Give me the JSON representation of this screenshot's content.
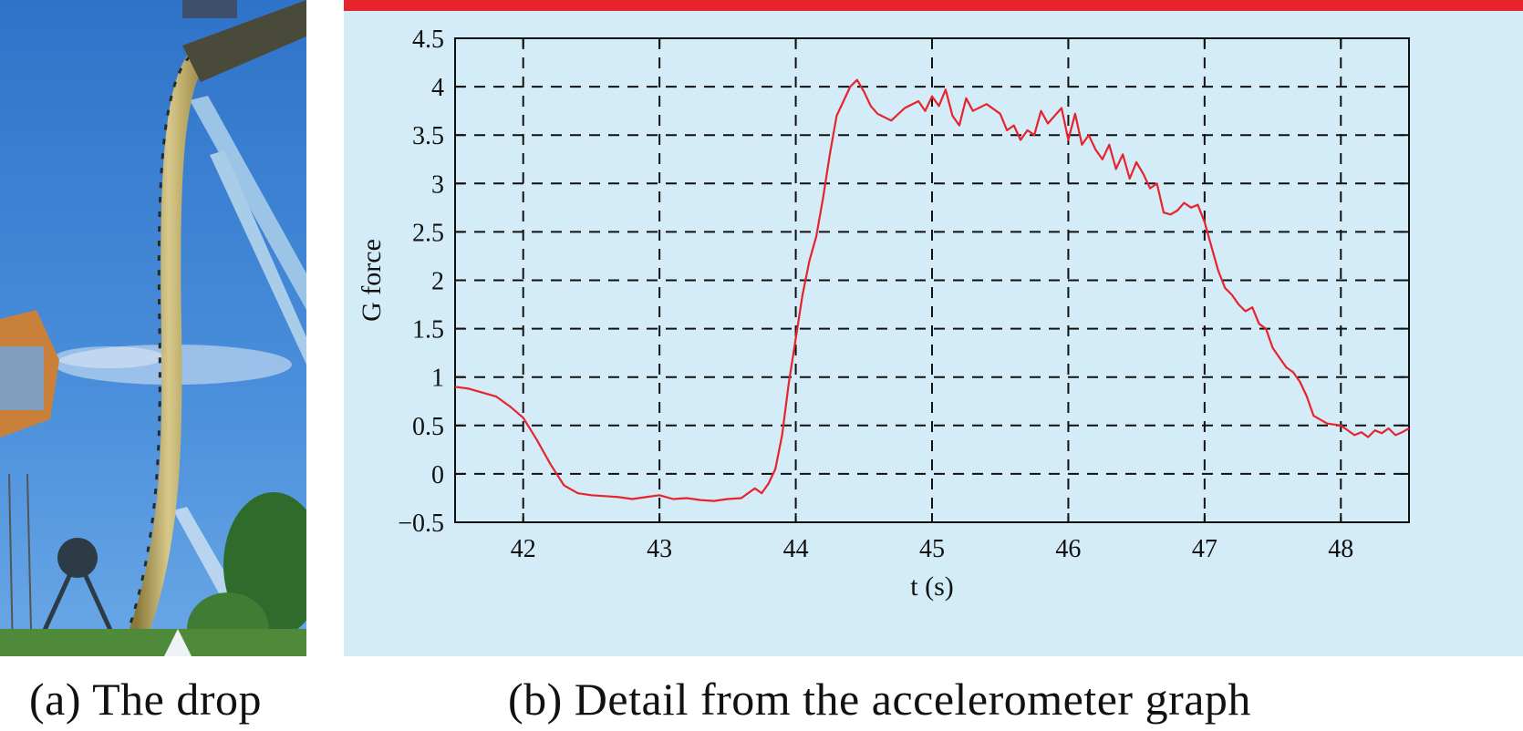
{
  "captions": {
    "a": "(a) The drop",
    "b": "(b) Detail from the accelerometer graph"
  },
  "colors": {
    "chart_background": "#d3ecf8",
    "top_bar": "#e8232c",
    "series_line": "#e8232c",
    "grid": "#111111",
    "sky": "#3b7fd0"
  },
  "chart_data": {
    "type": "line",
    "xlabel": "t (s)",
    "ylabel": "G force",
    "xlim": [
      41.5,
      48.5
    ],
    "ylim": [
      -0.5,
      4.5
    ],
    "xticks": [
      42,
      43,
      44,
      45,
      46,
      47,
      48
    ],
    "xtick_labels": [
      "42",
      "43",
      "44",
      "45",
      "46",
      "47",
      "48"
    ],
    "yticks": [
      -0.5,
      0,
      0.5,
      1,
      1.5,
      2,
      2.5,
      3,
      3.5,
      4,
      4.5
    ],
    "ytick_labels": [
      "−0.5",
      "0",
      "0.5",
      "1",
      "1.5",
      "2",
      "2.5",
      "3",
      "3.5",
      "4",
      "4.5"
    ],
    "grid": true,
    "grid_style": "dashed",
    "series": [
      {
        "x": [
          41.5,
          41.6,
          41.7,
          41.8,
          41.9,
          42.0,
          42.1,
          42.2,
          42.3,
          42.4,
          42.5,
          42.6,
          42.7,
          42.8,
          42.9,
          43.0,
          43.1,
          43.2,
          43.3,
          43.4,
          43.5,
          43.6,
          43.7,
          43.75,
          43.8,
          43.85,
          43.9,
          43.95,
          44.0,
          44.05,
          44.1,
          44.15,
          44.2,
          44.25,
          44.3,
          44.35,
          44.4,
          44.45,
          44.5,
          44.55,
          44.6,
          44.7,
          44.8,
          44.9,
          44.95,
          45.0,
          45.05,
          45.1,
          45.15,
          45.2,
          45.25,
          45.3,
          45.4,
          45.5,
          45.55,
          45.6,
          45.65,
          45.7,
          45.75,
          45.8,
          45.85,
          45.9,
          45.95,
          46.0,
          46.05,
          46.1,
          46.15,
          46.2,
          46.25,
          46.3,
          46.35,
          46.4,
          46.45,
          46.5,
          46.55,
          46.6,
          46.65,
          46.7,
          46.75,
          46.8,
          46.85,
          46.9,
          46.95,
          47.0,
          47.05,
          47.1,
          47.15,
          47.2,
          47.25,
          47.3,
          47.35,
          47.4,
          47.45,
          47.5,
          47.55,
          47.6,
          47.65,
          47.7,
          47.75,
          47.8,
          47.9,
          48.0,
          48.05,
          48.1,
          48.15,
          48.2,
          48.25,
          48.3,
          48.35,
          48.4,
          48.45,
          48.5
        ],
        "y": [
          0.9,
          0.88,
          0.84,
          0.8,
          0.7,
          0.58,
          0.35,
          0.1,
          -0.12,
          -0.2,
          -0.22,
          -0.23,
          -0.24,
          -0.26,
          -0.24,
          -0.22,
          -0.26,
          -0.25,
          -0.27,
          -0.28,
          -0.26,
          -0.25,
          -0.15,
          -0.2,
          -0.1,
          0.05,
          0.4,
          0.95,
          1.4,
          1.85,
          2.2,
          2.45,
          2.85,
          3.3,
          3.7,
          3.85,
          4.0,
          4.07,
          3.95,
          3.8,
          3.72,
          3.65,
          3.78,
          3.85,
          3.75,
          3.9,
          3.8,
          3.97,
          3.7,
          3.6,
          3.88,
          3.75,
          3.82,
          3.72,
          3.55,
          3.6,
          3.45,
          3.55,
          3.5,
          3.75,
          3.62,
          3.7,
          3.78,
          3.45,
          3.72,
          3.4,
          3.5,
          3.35,
          3.25,
          3.4,
          3.15,
          3.3,
          3.05,
          3.22,
          3.1,
          2.95,
          3.0,
          2.7,
          2.68,
          2.72,
          2.8,
          2.75,
          2.78,
          2.6,
          2.35,
          2.1,
          1.92,
          1.85,
          1.75,
          1.68,
          1.72,
          1.55,
          1.5,
          1.3,
          1.2,
          1.1,
          1.05,
          0.95,
          0.8,
          0.6,
          0.52,
          0.5,
          0.45,
          0.4,
          0.43,
          0.38,
          0.45,
          0.42,
          0.47,
          0.4,
          0.43,
          0.47
        ]
      }
    ]
  }
}
